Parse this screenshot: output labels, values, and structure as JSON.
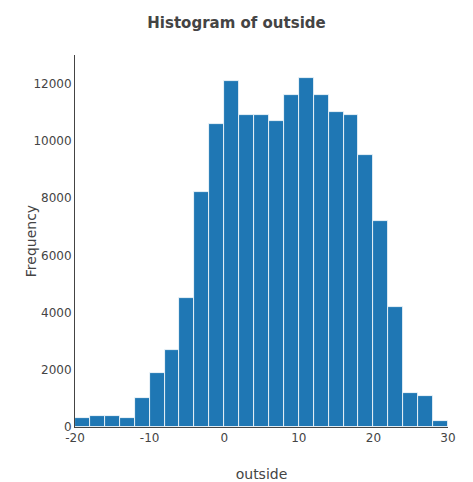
{
  "chart_data": {
    "type": "histogram",
    "title": "Histogram of outside",
    "xlabel": "outside",
    "ylabel": "Frequency",
    "bins": [
      -20,
      -18,
      -16,
      -14,
      -12,
      -10,
      -8,
      -6,
      -4,
      -2,
      0,
      2,
      4,
      6,
      8,
      10,
      12,
      14,
      16,
      18,
      20,
      22,
      24,
      26,
      28,
      30
    ],
    "counts": [
      300,
      400,
      400,
      300,
      1000,
      1900,
      2700,
      4500,
      8200,
      10600,
      12100,
      10900,
      10900,
      10700,
      11600,
      12200,
      11600,
      11000,
      10900,
      9500,
      7200,
      4200,
      1200,
      1100,
      200
    ],
    "xlim": [
      -20,
      30
    ],
    "ylim": [
      0,
      13000
    ],
    "xticks": [
      -20,
      -10,
      0,
      10,
      20,
      30
    ],
    "yticks": [
      0,
      2000,
      4000,
      6000,
      8000,
      10000,
      12000
    ],
    "grid": false
  }
}
